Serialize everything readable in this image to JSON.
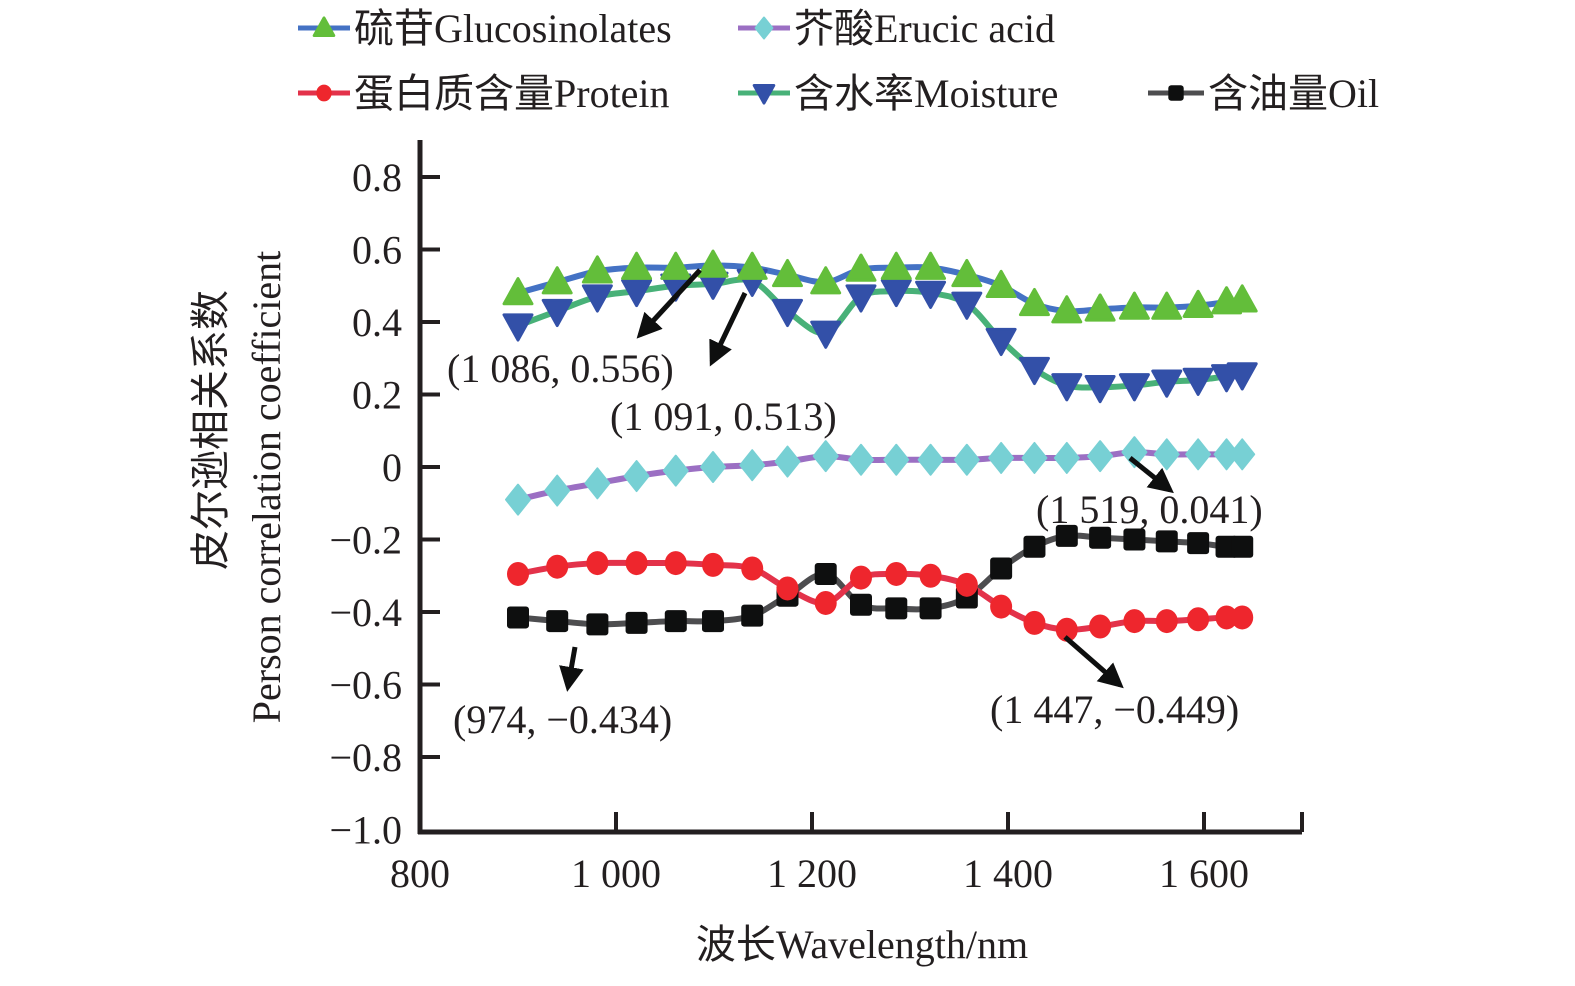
{
  "chart_data": {
    "type": "line",
    "title": "",
    "xlabel": "波长Wavelength/nm",
    "ylabel_cn": "皮尔逊相关系数",
    "ylabel_en": "Person correlation coefficient",
    "xlim": [
      800,
      1700
    ],
    "ylim": [
      -1.0,
      0.9
    ],
    "xticks": [
      800,
      1000,
      1200,
      1400,
      1600
    ],
    "xtick_labels": [
      "800",
      "1 000",
      "1 200",
      "1 400",
      "1 600"
    ],
    "yticks": [
      0.8,
      0.6,
      0.4,
      0.2,
      0,
      -0.2,
      -0.4,
      -0.6,
      -0.8,
      -1.0
    ],
    "ytick_labels": [
      "0.8",
      "0.6",
      "0.4",
      "0.2",
      "0",
      "−0.2",
      "−0.4",
      "−0.6",
      "−0.8",
      "−1.0"
    ],
    "grid": false,
    "legend_position": "top",
    "x": [
      900,
      940,
      981,
      1021,
      1061,
      1099,
      1139,
      1175,
      1214,
      1250,
      1286,
      1321,
      1358,
      1393,
      1427,
      1460,
      1494,
      1529,
      1562,
      1594,
      1623,
      1639
    ],
    "series": [
      {
        "name": "硫苷Glucosinolates",
        "marker": "triangle-up",
        "line_color": "#4472c4",
        "marker_color": "#63be3a",
        "values": [
          0.48,
          0.51,
          0.54,
          0.55,
          0.55,
          0.556,
          0.55,
          0.53,
          0.51,
          0.545,
          0.55,
          0.55,
          0.53,
          0.5,
          0.45,
          0.43,
          0.435,
          0.44,
          0.44,
          0.445,
          0.455,
          0.46
        ]
      },
      {
        "name": "芥酸Erucic acid",
        "marker": "diamond",
        "line_color": "#9b6fc3",
        "marker_color": "#77d0d4",
        "values": [
          -0.09,
          -0.065,
          -0.045,
          -0.025,
          -0.01,
          0.0,
          0.005,
          0.015,
          0.03,
          0.02,
          0.02,
          0.02,
          0.02,
          0.025,
          0.025,
          0.025,
          0.03,
          0.041,
          0.035,
          0.035,
          0.035,
          0.035
        ]
      },
      {
        "name": "蛋白质含量Protein",
        "marker": "circle",
        "line_color": "#e3324a",
        "marker_color": "#ee262d",
        "values": [
          -0.295,
          -0.275,
          -0.265,
          -0.265,
          -0.265,
          -0.27,
          -0.28,
          -0.335,
          -0.375,
          -0.305,
          -0.295,
          -0.3,
          -0.325,
          -0.385,
          -0.43,
          -0.449,
          -0.44,
          -0.425,
          -0.425,
          -0.42,
          -0.415,
          -0.415
        ]
      },
      {
        "name": "含水率Moisture",
        "marker": "triangle-down",
        "line_color": "#48b178",
        "marker_color": "#3350a8",
        "values": [
          0.39,
          0.43,
          0.47,
          0.485,
          0.5,
          0.505,
          0.513,
          0.43,
          0.37,
          0.47,
          0.485,
          0.48,
          0.45,
          0.35,
          0.27,
          0.225,
          0.22,
          0.225,
          0.235,
          0.24,
          0.25,
          0.255
        ]
      },
      {
        "name": "含油量Oil",
        "marker": "square",
        "line_color": "#4d4d4f",
        "marker_color": "#0e0f0f",
        "values": [
          -0.415,
          -0.425,
          -0.434,
          -0.43,
          -0.425,
          -0.425,
          -0.41,
          -0.355,
          -0.295,
          -0.38,
          -0.39,
          -0.39,
          -0.36,
          -0.28,
          -0.22,
          -0.19,
          -0.195,
          -0.2,
          -0.205,
          -0.21,
          -0.22,
          -0.22
        ]
      }
    ],
    "annotations": [
      {
        "text": "(1 086, 0.556)",
        "x": 1086,
        "y": 0.556,
        "series": "硫苷Glucosinolates"
      },
      {
        "text": "(1 091, 0.513)",
        "x": 1091,
        "y": 0.513,
        "series": "含水率Moisture"
      },
      {
        "text": "(1 519, 0.041)",
        "x": 1519,
        "y": 0.041,
        "series": "芥酸Erucic acid"
      },
      {
        "text": "(974, −0.434)",
        "x": 974,
        "y": -0.434,
        "series": "含油量Oil"
      },
      {
        "text": "(1 447, −0.449)",
        "x": 1447,
        "y": -0.449,
        "series": "蛋白质含量Protein"
      }
    ]
  }
}
